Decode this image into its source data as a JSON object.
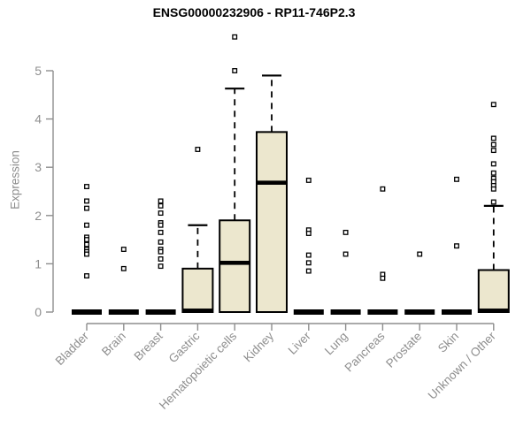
{
  "chart_data": {
    "type": "box",
    "title": "ENSG00000232906 - RP11-746P2.3",
    "ylabel": "Expression",
    "xlabel": "",
    "ylim": [
      0,
      5
    ],
    "yticks": [
      0,
      1,
      2,
      3,
      4,
      5
    ],
    "grid": false,
    "legend": "none",
    "categories": [
      "Bladder",
      "Brain",
      "Breast",
      "Gastric",
      "Hematopoietic cells",
      "Kidney",
      "Liver",
      "Lung",
      "Pancreas",
      "Prostate",
      "Skin",
      "Unknown / Other"
    ],
    "series": [
      {
        "name": "Bladder",
        "q1": 0,
        "median": 0,
        "q3": 0,
        "whisker_low": 0,
        "whisker_high": 0,
        "outliers": [
          2.6,
          2.3,
          2.15,
          1.8,
          1.55,
          1.5,
          1.4,
          1.3,
          1.25,
          1.2,
          0.75
        ]
      },
      {
        "name": "Brain",
        "q1": 0,
        "median": 0,
        "q3": 0,
        "whisker_low": 0,
        "whisker_high": 0,
        "outliers": [
          1.3,
          0.9
        ]
      },
      {
        "name": "Breast",
        "q1": 0,
        "median": 0,
        "q3": 0,
        "whisker_low": 0,
        "whisker_high": 0,
        "outliers": [
          2.3,
          2.2,
          2.05,
          1.85,
          1.8,
          1.65,
          1.45,
          1.3,
          1.25,
          1.1,
          0.95
        ]
      },
      {
        "name": "Gastric",
        "q1": 0,
        "median": 0.03,
        "q3": 0.9,
        "whisker_low": 0,
        "whisker_high": 1.8,
        "outliers": [
          3.37
        ]
      },
      {
        "name": "Hematopoietic cells",
        "q1": 0,
        "median": 1.02,
        "q3": 1.9,
        "whisker_low": 0,
        "whisker_high": 4.63,
        "outliers": [
          5.7,
          5.0
        ]
      },
      {
        "name": "Kidney",
        "q1": 0,
        "median": 2.68,
        "q3": 3.73,
        "whisker_low": 0,
        "whisker_high": 4.9,
        "outliers": []
      },
      {
        "name": "Liver",
        "q1": 0,
        "median": 0,
        "q3": 0,
        "whisker_low": 0,
        "whisker_high": 0,
        "outliers": [
          2.73,
          1.7,
          1.63,
          1.18,
          1.02,
          0.85
        ]
      },
      {
        "name": "Lung",
        "q1": 0,
        "median": 0,
        "q3": 0,
        "whisker_low": 0,
        "whisker_high": 0,
        "outliers": [
          1.65,
          1.2
        ]
      },
      {
        "name": "Pancreas",
        "q1": 0,
        "median": 0,
        "q3": 0,
        "whisker_low": 0,
        "whisker_high": 0,
        "outliers": [
          2.55,
          0.78,
          0.7
        ]
      },
      {
        "name": "Prostate",
        "q1": 0,
        "median": 0,
        "q3": 0,
        "whisker_low": 0,
        "whisker_high": 0,
        "outliers": [
          1.2
        ]
      },
      {
        "name": "Skin",
        "q1": 0,
        "median": 0,
        "q3": 0,
        "whisker_low": 0,
        "whisker_high": 0,
        "outliers": [
          2.75,
          1.37
        ]
      },
      {
        "name": "Unknown / Other",
        "q1": 0,
        "median": 0.03,
        "q3": 0.87,
        "whisker_low": 0,
        "whisker_high": 2.2,
        "outliers": [
          4.3,
          3.6,
          3.47,
          3.35,
          3.07,
          2.88,
          2.77,
          2.7,
          2.62,
          2.55,
          2.28
        ]
      }
    ],
    "colors": {
      "box_fill": "#ECE7CE",
      "box_stroke": "#000000",
      "median": "#000000",
      "whisker": "#000000",
      "outlier_stroke": "#000000",
      "axis": "#8E8E8E",
      "tick_label": "#8E8E8E",
      "title": "#000000",
      "background": "#FFFFFF"
    }
  }
}
